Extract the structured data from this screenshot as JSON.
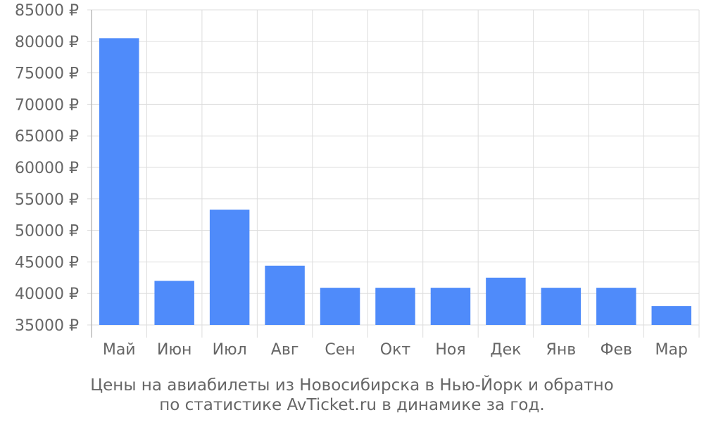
{
  "chart_data": {
    "type": "bar",
    "categories": [
      "Май",
      "Июн",
      "Июл",
      "Авг",
      "Сен",
      "Окт",
      "Ноя",
      "Дек",
      "Янв",
      "Фев",
      "Мар"
    ],
    "values": [
      80500,
      42000,
      53300,
      44400,
      40900,
      40900,
      40900,
      42500,
      40900,
      40900,
      38000
    ],
    "ylim": [
      35000,
      85000
    ],
    "y_ticks": [
      35000,
      40000,
      45000,
      50000,
      55000,
      60000,
      65000,
      70000,
      75000,
      80000,
      85000
    ],
    "y_tick_suffix": " ₽",
    "grid": true,
    "bar_color": "#4f8bfa"
  },
  "caption": {
    "line1": "Цены на авиабилеты из Новосибирска в Нью-Йорк и обратно",
    "line2": "по статистике AvTicket.ru в динамике за год."
  }
}
